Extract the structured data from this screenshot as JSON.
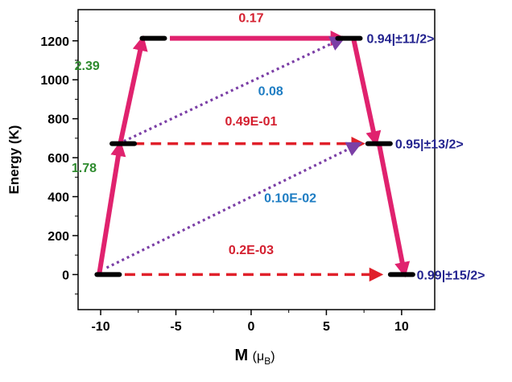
{
  "chart_data": {
    "type": "scatter",
    "xlabel": {
      "main": "M",
      "unit_open": "(",
      "unit_symbol": "μ",
      "unit_sub": "B",
      "unit_close": ")"
    },
    "ylabel": "Energy (K)",
    "xlim": [
      -11.5,
      12.2
    ],
    "ylim": [
      -180,
      1360
    ],
    "xticks": [
      -10,
      -5,
      0,
      5,
      10
    ],
    "yticks": [
      0,
      200,
      400,
      600,
      800,
      1000,
      1200
    ],
    "grid": false,
    "states": [
      {
        "m": -9.5,
        "energy": 0
      },
      {
        "m": 10,
        "energy": 0
      },
      {
        "m": -8.5,
        "energy": 672
      },
      {
        "m": 8.5,
        "energy": 672
      },
      {
        "m": -6.5,
        "energy": 1213
      },
      {
        "m": 6.5,
        "energy": 1213
      }
    ],
    "state_labels": [
      {
        "text": "0.99|±15/2>",
        "energy": 0
      },
      {
        "text": "0.95|±13/2>",
        "energy": 672
      },
      {
        "text": "0.94|±11/2>",
        "energy": 1213
      }
    ],
    "transitions": [
      {
        "kind": "solid",
        "color": "#e0226e",
        "from": [
          -10.1,
          0
        ],
        "to": [
          -8.7,
          672
        ],
        "label": "1.78",
        "label_color": "#2e8b2e",
        "label_at": [
          -11.1,
          550
        ]
      },
      {
        "kind": "solid",
        "color": "#e0226e",
        "from": [
          -8.7,
          672
        ],
        "to": [
          -7.2,
          1213
        ],
        "label": "2.39",
        "label_color": "#2e8b2e",
        "label_at": [
          -10.9,
          1075
        ]
      },
      {
        "kind": "solid",
        "color": "#e0226e",
        "from": [
          -5.4,
          1213
        ],
        "to": [
          6.1,
          1213
        ],
        "label": "0.17",
        "label_color": "#d42030",
        "label_at": [
          0,
          1320
        ]
      },
      {
        "kind": "solid",
        "color": "#e0226e",
        "from": [
          6.8,
          1213
        ],
        "to": [
          8.3,
          672
        ],
        "label": "",
        "label_color": "#d42030",
        "label_at": [
          0,
          0
        ]
      },
      {
        "kind": "solid",
        "color": "#e0226e",
        "from": [
          8.5,
          672
        ],
        "to": [
          10.2,
          0
        ],
        "label": "",
        "label_color": "#d42030",
        "label_at": [
          0,
          0
        ]
      },
      {
        "kind": "dashed",
        "color": "#e0202a",
        "from": [
          -7.8,
          672
        ],
        "to": [
          7.4,
          672
        ],
        "label": "0.49E-01",
        "label_color": "#d42030",
        "label_at": [
          0,
          790
        ]
      },
      {
        "kind": "dashed",
        "color": "#e0202a",
        "from": [
          -8.4,
          0
        ],
        "to": [
          8.6,
          0
        ],
        "label": "0.2E-03",
        "label_color": "#d42030",
        "label_at": [
          0,
          130
        ]
      },
      {
        "kind": "dotted",
        "color": "#7b3fa6",
        "from": [
          -8.8,
          672
        ],
        "to": [
          6.1,
          1213
        ],
        "label": "0.08",
        "label_color": "#1e7dc3",
        "label_at": [
          1.3,
          945
        ]
      },
      {
        "kind": "dotted",
        "color": "#7b3fa6",
        "from": [
          -9.6,
          35
        ],
        "to": [
          7.2,
          672
        ],
        "label": "0.10E-02",
        "label_color": "#1e7dc3",
        "label_at": [
          2.6,
          395
        ]
      }
    ]
  },
  "colors": {
    "state_bar": "#000000",
    "state_label_text": "#23238f",
    "axis": "#000000"
  }
}
